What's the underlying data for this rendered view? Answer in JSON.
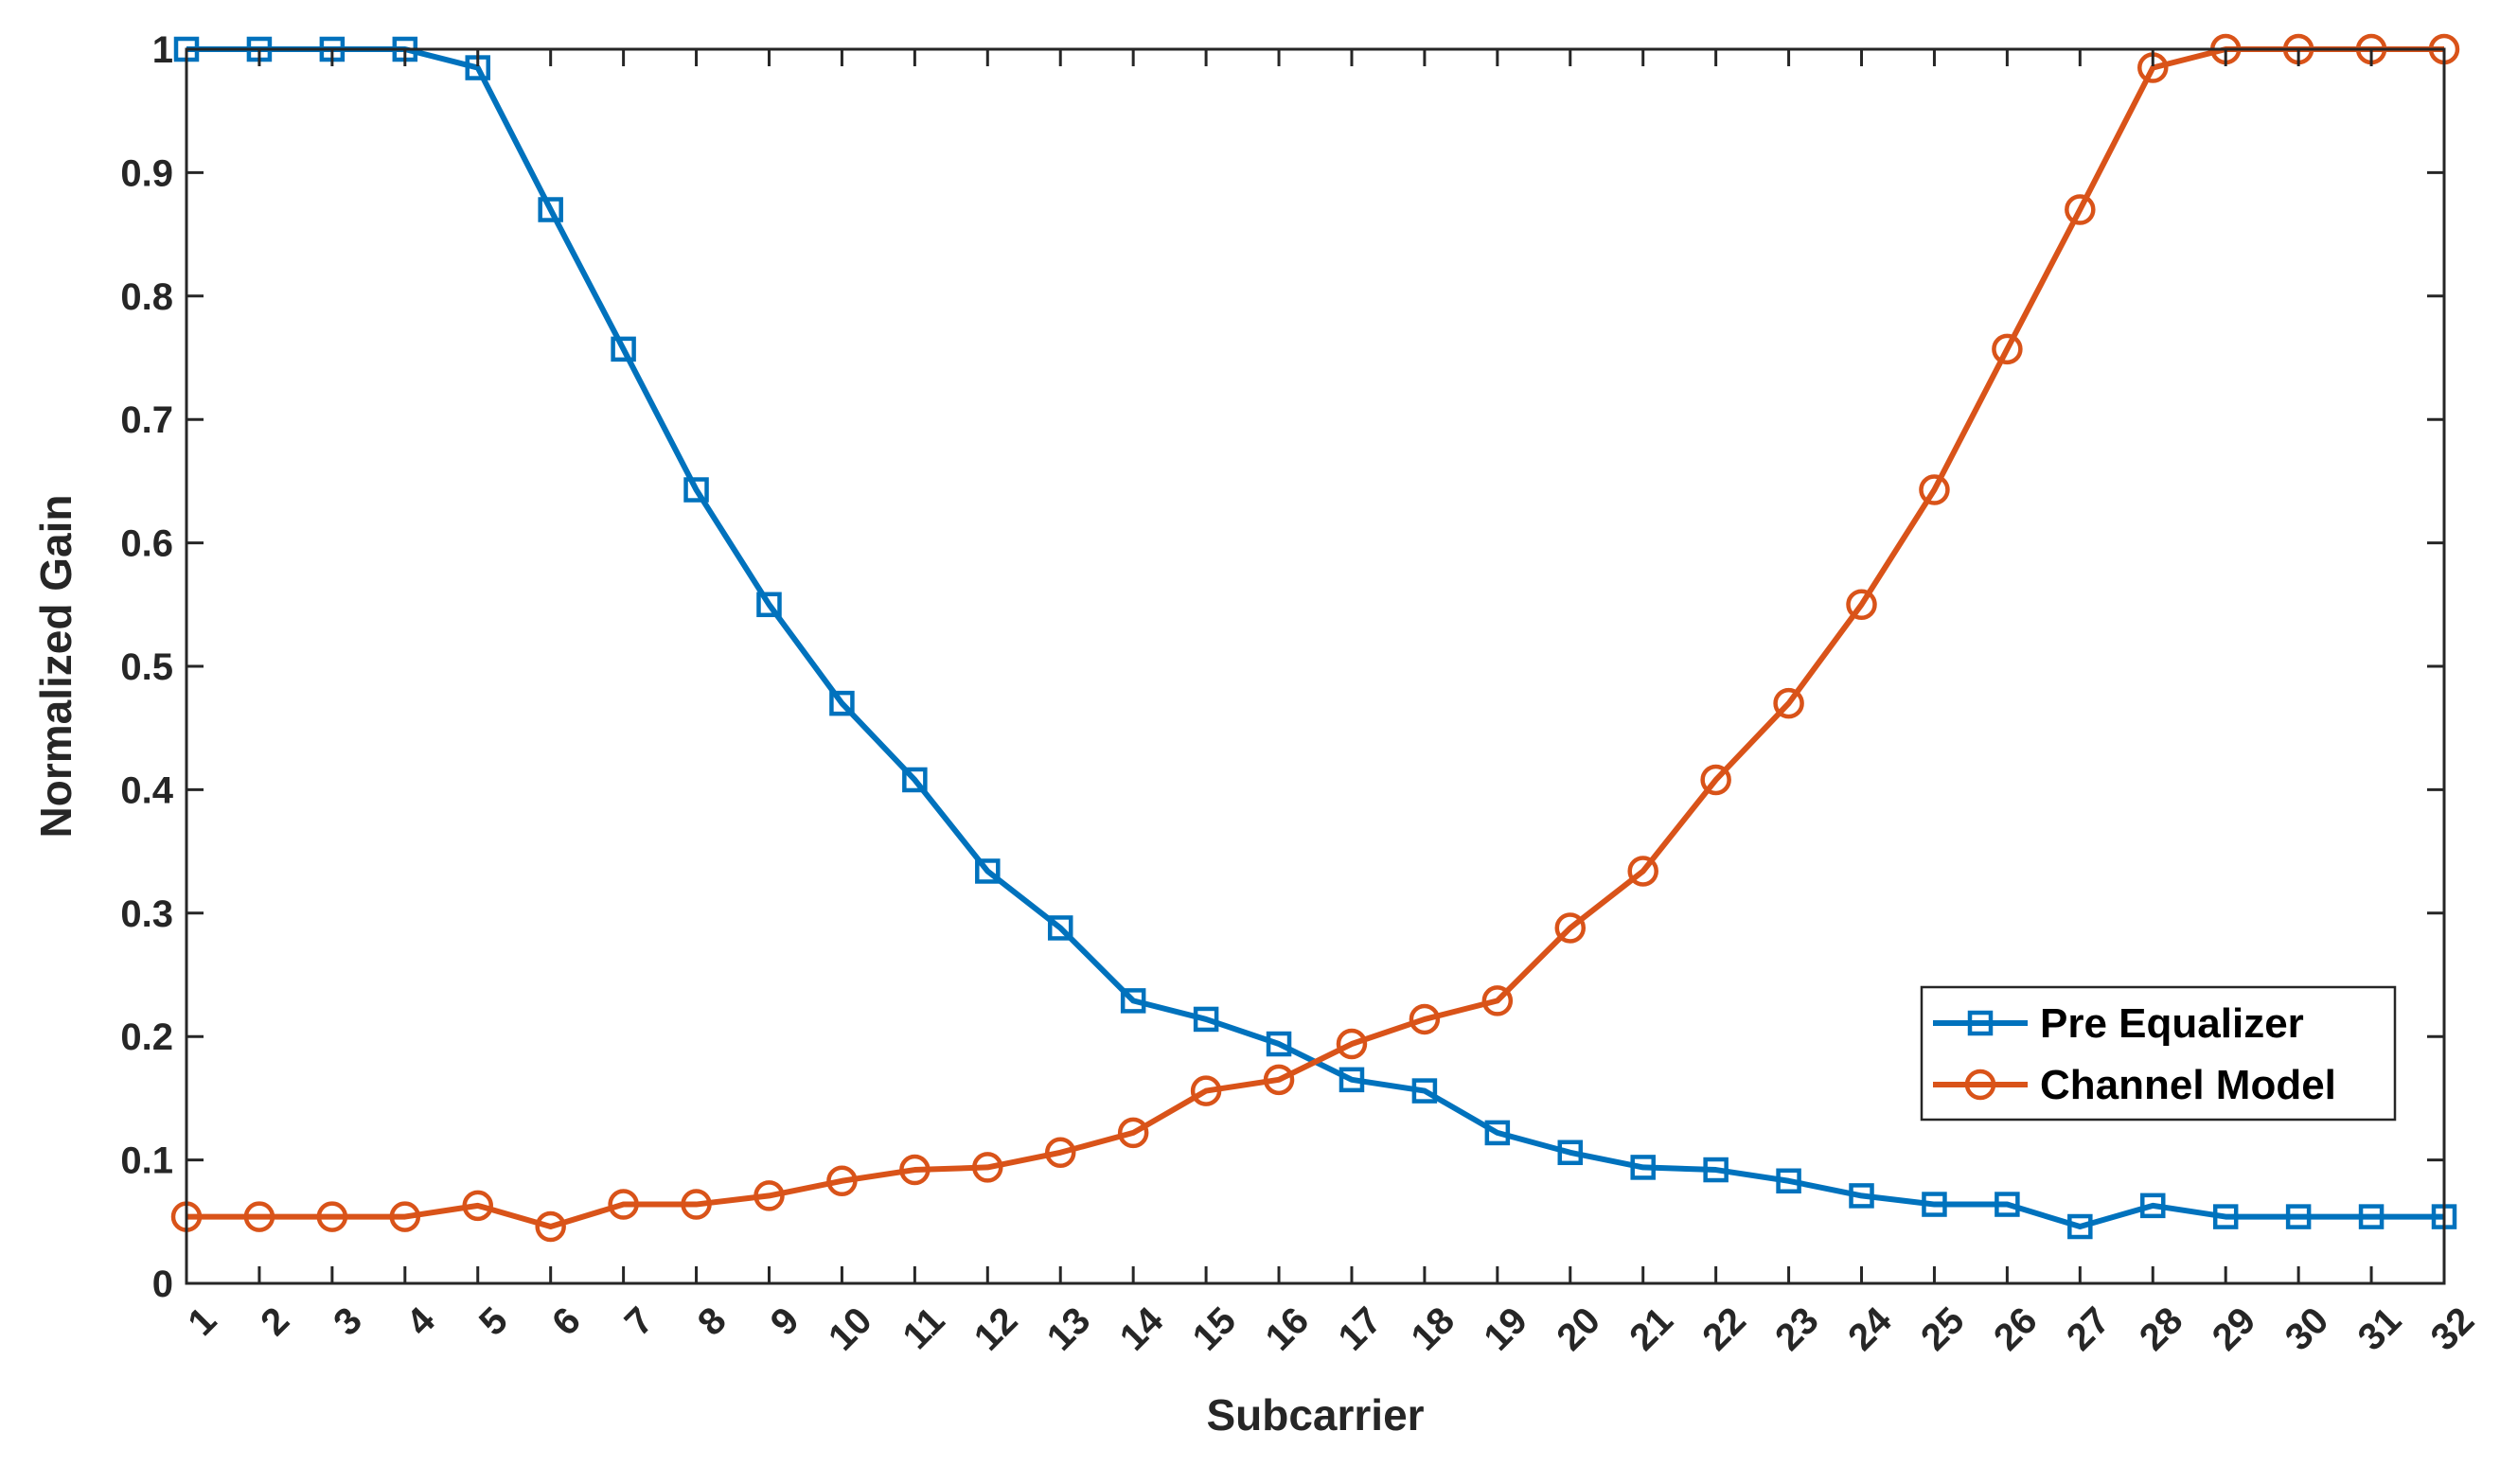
{
  "chart_data": {
    "type": "line",
    "xlabel": "Subcarrier",
    "ylabel": "Normalized Gain",
    "xlim": [
      1,
      32
    ],
    "ylim": [
      0,
      1
    ],
    "x": [
      1,
      2,
      3,
      4,
      5,
      6,
      7,
      8,
      9,
      10,
      11,
      12,
      13,
      14,
      15,
      16,
      17,
      18,
      19,
      20,
      21,
      22,
      23,
      24,
      25,
      26,
      27,
      28,
      29,
      30,
      31,
      32
    ],
    "x_ticks": [
      "1",
      "2",
      "3",
      "4",
      "5",
      "6",
      "7",
      "8",
      "9",
      "10",
      "11",
      "12",
      "13",
      "14",
      "15",
      "16",
      "17",
      "18",
      "19",
      "20",
      "21",
      "22",
      "23",
      "24",
      "25",
      "26",
      "27",
      "28",
      "29",
      "30",
      "31",
      "32"
    ],
    "y_ticks": [
      "0",
      "0.1",
      "0.2",
      "0.3",
      "0.4",
      "0.5",
      "0.6",
      "0.7",
      "0.8",
      "0.9",
      "1"
    ],
    "y_tick_values": [
      0,
      0.1,
      0.2,
      0.3,
      0.4,
      0.5,
      0.6,
      0.7,
      0.8,
      0.9,
      1
    ],
    "grid": false,
    "legend_position": "lower-right",
    "series": [
      {
        "name": "Pre Equalizer",
        "color": "#0072BD",
        "marker": "square",
        "values": [
          1.0,
          1.0,
          1.0,
          1.0,
          0.985,
          0.87,
          0.757,
          0.643,
          0.55,
          0.47,
          0.408,
          0.334,
          0.288,
          0.229,
          0.214,
          0.194,
          0.165,
          0.156,
          0.122,
          0.106,
          0.094,
          0.092,
          0.083,
          0.071,
          0.064,
          0.064,
          0.046,
          0.063,
          0.054,
          0.054,
          0.054,
          0.054
        ]
      },
      {
        "name": "Channel Model",
        "color": "#D95319",
        "marker": "circle",
        "values": [
          0.054,
          0.054,
          0.054,
          0.054,
          0.063,
          0.046,
          0.064,
          0.064,
          0.071,
          0.083,
          0.092,
          0.094,
          0.106,
          0.122,
          0.156,
          0.165,
          0.194,
          0.214,
          0.229,
          0.288,
          0.334,
          0.408,
          0.47,
          0.55,
          0.643,
          0.757,
          0.87,
          0.985,
          1.0,
          1.0,
          1.0,
          1.0
        ]
      }
    ]
  }
}
